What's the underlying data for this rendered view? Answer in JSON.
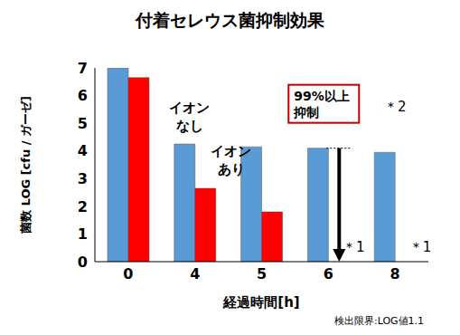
{
  "chart_data": {
    "type": "bar",
    "title": "付着セレウス菌抑制効果",
    "x_label": "経過時間[h]",
    "y_label": "菌数 LOG [cfu / ガーゼ]",
    "categories": [
      "0",
      "4",
      "5",
      "6",
      "8"
    ],
    "series": [
      {
        "name": "イオン\nなし",
        "color": "#5b9bd5",
        "values": [
          7.0,
          4.25,
          4.15,
          4.1,
          3.95
        ]
      },
      {
        "name": "イオン\nあり",
        "color": "#ff0000",
        "values": [
          6.65,
          2.65,
          1.8,
          null,
          null
        ]
      }
    ],
    "ylim": [
      0,
      7
    ],
    "yticks": [
      0,
      1,
      2,
      3,
      4,
      5,
      6,
      7
    ],
    "grid": false,
    "annotations": {
      "reduction": [
        "99%以上",
        "抑制"
      ],
      "reduction_note": "＊2",
      "below_detection": "＊1",
      "detection_limit": "検出限界:LOG値1.1"
    }
  }
}
